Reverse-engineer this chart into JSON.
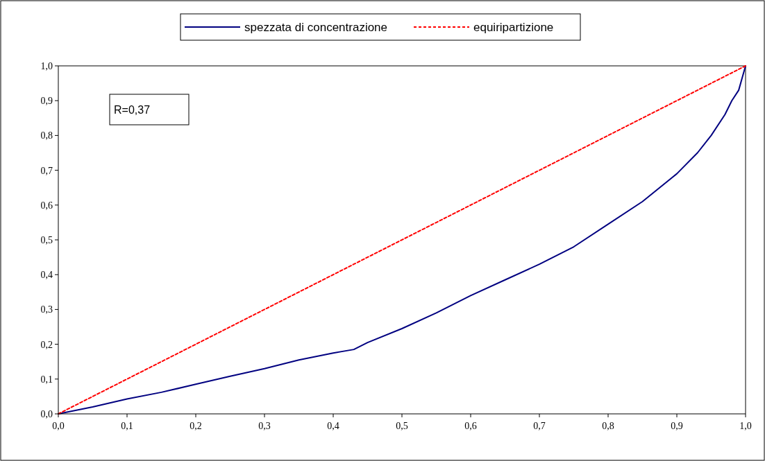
{
  "chart_data": {
    "type": "line",
    "legend": "top",
    "annotations": [
      "R=0,37"
    ],
    "xlim": [
      0,
      1
    ],
    "ylim": [
      0,
      1
    ],
    "xticks": [
      {
        "value": 0,
        "label": "0,0"
      },
      {
        "value": 0.1,
        "label": "0,1"
      },
      {
        "value": 0.2,
        "label": "0,2"
      },
      {
        "value": 0.3,
        "label": "0,3"
      },
      {
        "value": 0.4,
        "label": "0,4"
      },
      {
        "value": 0.5,
        "label": "0,5"
      },
      {
        "value": 0.6,
        "label": "0,6"
      },
      {
        "value": 0.7,
        "label": "0,7"
      },
      {
        "value": 0.8,
        "label": "0,8"
      },
      {
        "value": 0.9,
        "label": "0,9"
      },
      {
        "value": 1,
        "label": "1,0"
      }
    ],
    "yticks": [
      {
        "value": 0,
        "label": "0,0"
      },
      {
        "value": 0.1,
        "label": "0,1"
      },
      {
        "value": 0.2,
        "label": "0,2"
      },
      {
        "value": 0.3,
        "label": "0,3"
      },
      {
        "value": 0.4,
        "label": "0,4"
      },
      {
        "value": 0.5,
        "label": "0,5"
      },
      {
        "value": 0.6,
        "label": "0,6"
      },
      {
        "value": 0.7,
        "label": "0,7"
      },
      {
        "value": 0.8,
        "label": "0,8"
      },
      {
        "value": 0.9,
        "label": "0,9"
      },
      {
        "value": 1,
        "label": "1,0"
      }
    ],
    "series": [
      {
        "name": "spezzata di concentrazione",
        "color": "#000080",
        "line_style": "solid",
        "x": [
          0,
          0.05,
          0.1,
          0.15,
          0.2,
          0.25,
          0.3,
          0.35,
          0.4,
          0.43,
          0.45,
          0.5,
          0.55,
          0.6,
          0.65,
          0.7,
          0.75,
          0.8,
          0.85,
          0.9,
          0.93,
          0.95,
          0.97,
          0.98,
          0.99,
          1.0
        ],
        "values": [
          0,
          0.02,
          0.043,
          0.062,
          0.085,
          0.108,
          0.13,
          0.155,
          0.175,
          0.185,
          0.205,
          0.245,
          0.29,
          0.34,
          0.385,
          0.43,
          0.48,
          0.545,
          0.61,
          0.69,
          0.75,
          0.8,
          0.86,
          0.9,
          0.93,
          1.0
        ]
      },
      {
        "name": "equiripartizione",
        "color": "#ff0000",
        "line_style": "dashed",
        "x": [
          0,
          1
        ],
        "values": [
          0,
          1
        ]
      }
    ]
  }
}
